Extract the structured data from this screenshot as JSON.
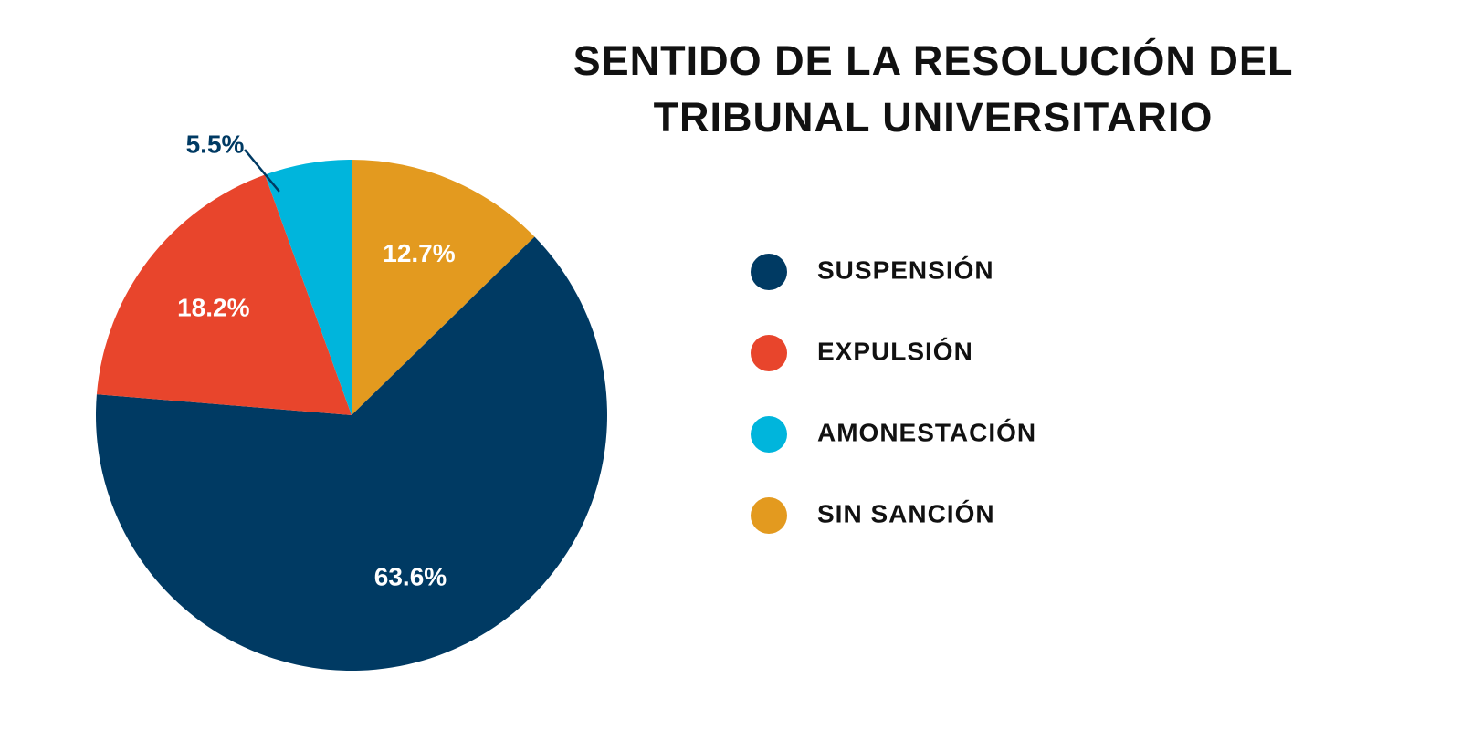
{
  "chart_data": {
    "type": "pie",
    "title": "SENTIDO DE LA RESOLUCIÓN DEL TRIBUNAL UNIVERSITARIO",
    "categories": [
      "SUSPENSIÓN",
      "EXPULSIÓN",
      "AMONESTACIÓN",
      "SIN SANCIÓN"
    ],
    "values": [
      63.6,
      18.2,
      5.5,
      12.7
    ],
    "value_labels": [
      "63.6%",
      "18.2%",
      "5.5%",
      "12.7%"
    ],
    "colors": [
      "#003a63",
      "#e8452c",
      "#00b5dc",
      "#e39a1f"
    ],
    "legend": "right"
  }
}
